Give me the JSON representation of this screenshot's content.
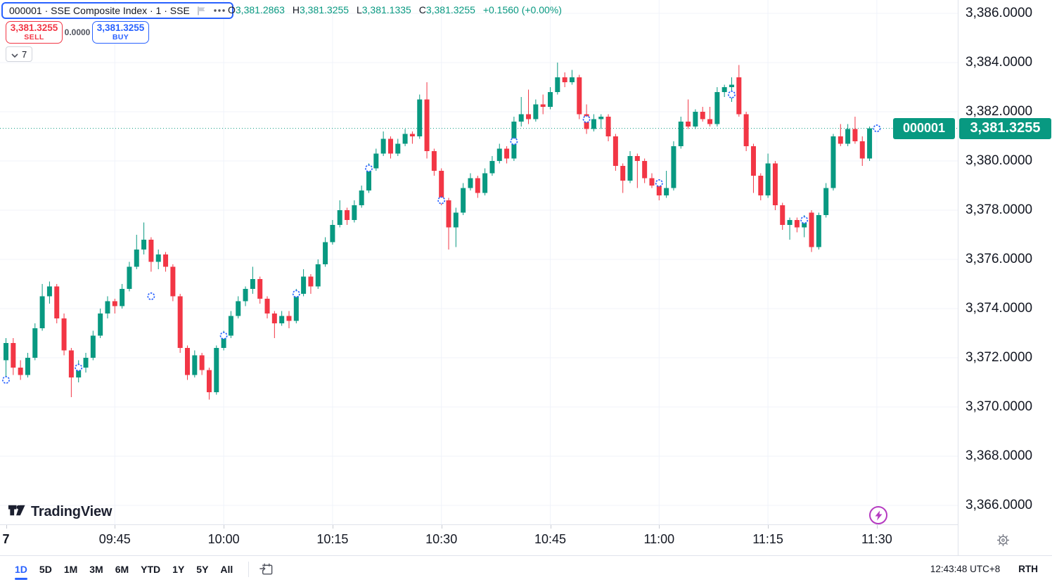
{
  "legend": {
    "symbol_text": "000001 · SSE Composite Index · 1 · SSE"
  },
  "ohlc": {
    "open_label": "O",
    "open": "3,381.2863",
    "high_label": "H",
    "high": "3,381.3255",
    "low_label": "L",
    "low": "3,381.1335",
    "close_label": "C",
    "close": "3,381.3255",
    "change": "+0.1560 (+0.00%)"
  },
  "trading": {
    "sell_price": "3,381.3255",
    "sell_label": "SELL",
    "spread": "0.0000",
    "buy_price": "3,381.3255",
    "buy_label": "BUY",
    "collapsed_count": "7"
  },
  "logo": {
    "text": "TradingView"
  },
  "toolbar": {
    "ranges": [
      "1D",
      "5D",
      "1M",
      "3M",
      "6M",
      "YTD",
      "1Y",
      "5Y",
      "All"
    ],
    "active_range": "1D",
    "clock": "12:43:48 UTC+8",
    "session": "RTH"
  },
  "colors": {
    "up": "#089981",
    "down": "#f23645",
    "accent": "#2962ff",
    "text": "#131722",
    "muted": "#787b86",
    "grid": "#f0f3fa",
    "border": "#e0e3eb",
    "label_bg": "#089981",
    "lightning": "#b53ac1"
  },
  "chart_data": {
    "type": "candlestick",
    "symbol": "000001",
    "interval_minutes": 1,
    "session_start": "09:30",
    "price_line": {
      "price": 3381.3255,
      "symbol_label": "000001",
      "value_label": "3,381.3255"
    },
    "price_axis": {
      "min": 3366,
      "max": 3386,
      "step": 2,
      "labels": [
        {
          "price": 3386,
          "label": "3,386.0000"
        },
        {
          "price": 3384,
          "label": "3,384.0000"
        },
        {
          "price": 3382,
          "label": "3,382.0000"
        },
        {
          "price": 3380,
          "label": "3,380.0000"
        },
        {
          "price": 3378,
          "label": "3,378.0000"
        },
        {
          "price": 3376,
          "label": "3,376.0000"
        },
        {
          "price": 3374,
          "label": "3,374.0000"
        },
        {
          "price": 3372,
          "label": "3,372.0000"
        },
        {
          "price": 3370,
          "label": "3,370.0000"
        },
        {
          "price": 3368,
          "label": "3,368.0000"
        },
        {
          "price": 3366,
          "label": "3,366.0000"
        }
      ]
    },
    "time_axis": [
      {
        "minute": 0,
        "label": "7",
        "bold": true
      },
      {
        "minute": 15,
        "label": "09:45"
      },
      {
        "minute": 30,
        "label": "10:00"
      },
      {
        "minute": 45,
        "label": "10:15"
      },
      {
        "minute": 60,
        "label": "10:30"
      },
      {
        "minute": 75,
        "label": "10:45"
      },
      {
        "minute": 90,
        "label": "11:00"
      },
      {
        "minute": 105,
        "label": "11:15"
      },
      {
        "minute": 120,
        "label": "11:30"
      }
    ],
    "markers": [
      {
        "minute": 0,
        "price": 3371.1
      },
      {
        "minute": 10,
        "price": 3371.6
      },
      {
        "minute": 20,
        "price": 3374.5
      },
      {
        "minute": 30,
        "price": 3372.9
      },
      {
        "minute": 40,
        "price": 3374.6
      },
      {
        "minute": 50,
        "price": 3379.7
      },
      {
        "minute": 60,
        "price": 3378.4
      },
      {
        "minute": 70,
        "price": 3380.8
      },
      {
        "minute": 80,
        "price": 3381.7
      },
      {
        "minute": 90,
        "price": 3379.1
      },
      {
        "minute": 100,
        "price": 3382.7
      },
      {
        "minute": 110,
        "price": 3377.6
      },
      {
        "minute": 120,
        "price": 3381.3255
      }
    ],
    "candles": [
      [
        3371.9,
        3372.8,
        3371.0,
        3372.6
      ],
      [
        3372.6,
        3372.8,
        3371.3,
        3371.6
      ],
      [
        3371.6,
        3371.9,
        3371.1,
        3371.3
      ],
      [
        3371.3,
        3372.2,
        3371.2,
        3372.0
      ],
      [
        3372.0,
        3373.4,
        3371.9,
        3373.2
      ],
      [
        3373.2,
        3375.0,
        3373.1,
        3374.5
      ],
      [
        3374.5,
        3375.1,
        3374.2,
        3374.9
      ],
      [
        3374.9,
        3375.0,
        3373.4,
        3373.6
      ],
      [
        3373.6,
        3373.8,
        3372.1,
        3372.3
      ],
      [
        3372.3,
        3372.4,
        3370.4,
        3371.2
      ],
      [
        3371.2,
        3371.9,
        3371.0,
        3371.6
      ],
      [
        3371.6,
        3372.2,
        3371.4,
        3372.0
      ],
      [
        3372.0,
        3373.1,
        3371.9,
        3372.9
      ],
      [
        3372.9,
        3374.0,
        3372.8,
        3373.8
      ],
      [
        3373.8,
        3374.5,
        3373.6,
        3374.3
      ],
      [
        3374.3,
        3374.4,
        3373.8,
        3374.1
      ],
      [
        3374.1,
        3375.0,
        3374.0,
        3374.8
      ],
      [
        3374.8,
        3375.9,
        3374.7,
        3375.7
      ],
      [
        3375.7,
        3377.0,
        3375.6,
        3376.4
      ],
      [
        3376.4,
        3377.5,
        3376.2,
        3376.8
      ],
      [
        3376.8,
        3376.9,
        3375.5,
        3375.9
      ],
      [
        3375.9,
        3376.4,
        3375.6,
        3376.2
      ],
      [
        3376.2,
        3376.3,
        3375.5,
        3375.7
      ],
      [
        3375.7,
        3375.8,
        3374.3,
        3374.5
      ],
      [
        3374.5,
        3374.6,
        3372.2,
        3372.4
      ],
      [
        3372.4,
        3372.5,
        3371.1,
        3371.3
      ],
      [
        3371.3,
        3372.3,
        3371.2,
        3372.1
      ],
      [
        3372.1,
        3372.2,
        3371.3,
        3371.5
      ],
      [
        3371.5,
        3371.6,
        3370.3,
        3370.6
      ],
      [
        3370.6,
        3372.5,
        3370.5,
        3372.4
      ],
      [
        3372.4,
        3373.1,
        3372.3,
        3372.9
      ],
      [
        3372.9,
        3373.9,
        3372.8,
        3373.7
      ],
      [
        3373.7,
        3374.5,
        3373.6,
        3374.3
      ],
      [
        3374.3,
        3374.9,
        3374.1,
        3374.8
      ],
      [
        3374.8,
        3375.7,
        3374.6,
        3375.2
      ],
      [
        3375.2,
        3375.3,
        3374.2,
        3374.4
      ],
      [
        3374.4,
        3374.5,
        3373.6,
        3373.8
      ],
      [
        3373.8,
        3373.9,
        3372.8,
        3373.4
      ],
      [
        3373.4,
        3373.9,
        3373.3,
        3373.7
      ],
      [
        3373.7,
        3373.9,
        3373.2,
        3373.5
      ],
      [
        3373.5,
        3374.8,
        3373.4,
        3374.6
      ],
      [
        3374.6,
        3375.6,
        3374.5,
        3375.3
      ],
      [
        3375.3,
        3375.4,
        3374.6,
        3374.9
      ],
      [
        3374.9,
        3376.0,
        3374.8,
        3375.8
      ],
      [
        3375.8,
        3376.9,
        3375.7,
        3376.7
      ],
      [
        3376.7,
        3377.6,
        3376.6,
        3377.4
      ],
      [
        3377.4,
        3378.4,
        3377.3,
        3378.0
      ],
      [
        3378.0,
        3378.1,
        3377.4,
        3377.6
      ],
      [
        3377.6,
        3378.4,
        3377.5,
        3378.2
      ],
      [
        3378.2,
        3379.0,
        3378.1,
        3378.8
      ],
      [
        3378.8,
        3379.9,
        3378.7,
        3379.7
      ],
      [
        3379.7,
        3380.5,
        3379.6,
        3380.3
      ],
      [
        3380.3,
        3381.2,
        3380.2,
        3380.9
      ],
      [
        3380.9,
        3381.0,
        3380.1,
        3380.3
      ],
      [
        3380.3,
        3380.9,
        3380.2,
        3380.7
      ],
      [
        3380.7,
        3381.3,
        3380.6,
        3381.1
      ],
      [
        3381.1,
        3381.2,
        3380.7,
        3381.0
      ],
      [
        3381.0,
        3382.7,
        3380.9,
        3382.5
      ],
      [
        3382.5,
        3383.2,
        3380.1,
        3380.4
      ],
      [
        3380.4,
        3380.5,
        3379.4,
        3379.6
      ],
      [
        3379.6,
        3379.7,
        3378.2,
        3378.4
      ],
      [
        3378.4,
        3378.5,
        3376.4,
        3377.3
      ],
      [
        3377.3,
        3378.1,
        3376.5,
        3377.9
      ],
      [
        3377.9,
        3379.1,
        3377.8,
        3378.9
      ],
      [
        3378.9,
        3379.5,
        3378.8,
        3379.3
      ],
      [
        3379.3,
        3379.4,
        3378.5,
        3378.7
      ],
      [
        3378.7,
        3379.7,
        3378.6,
        3379.5
      ],
      [
        3379.5,
        3380.2,
        3379.4,
        3380.0
      ],
      [
        3380.0,
        3380.7,
        3379.9,
        3380.5
      ],
      [
        3380.5,
        3380.6,
        3379.9,
        3380.1
      ],
      [
        3380.1,
        3381.8,
        3380.0,
        3381.6
      ],
      [
        3381.6,
        3382.6,
        3381.4,
        3381.9
      ],
      [
        3381.9,
        3382.9,
        3381.5,
        3381.7
      ],
      [
        3381.7,
        3382.5,
        3381.6,
        3382.3
      ],
      [
        3382.3,
        3382.7,
        3381.9,
        3382.2
      ],
      [
        3382.2,
        3383.0,
        3382.1,
        3382.8
      ],
      [
        3382.8,
        3384.0,
        3382.7,
        3383.4
      ],
      [
        3383.4,
        3383.6,
        3383.0,
        3383.2
      ],
      [
        3383.2,
        3383.7,
        3383.1,
        3383.4
      ],
      [
        3383.4,
        3383.5,
        3381.7,
        3381.9
      ],
      [
        3381.9,
        3382.3,
        3381.1,
        3381.3
      ],
      [
        3381.3,
        3381.9,
        3381.2,
        3381.7
      ],
      [
        3381.7,
        3381.9,
        3381.3,
        3381.8
      ],
      [
        3381.8,
        3381.9,
        3380.8,
        3381.0
      ],
      [
        3381.0,
        3381.1,
        3379.6,
        3379.8
      ],
      [
        3379.8,
        3379.9,
        3378.7,
        3379.2
      ],
      [
        3379.2,
        3380.4,
        3379.1,
        3380.2
      ],
      [
        3380.2,
        3380.3,
        3378.9,
        3380.0
      ],
      [
        3380.0,
        3380.1,
        3379.1,
        3379.3
      ],
      [
        3379.3,
        3379.5,
        3378.9,
        3379.0
      ],
      [
        3379.0,
        3379.1,
        3378.4,
        3378.6
      ],
      [
        3378.6,
        3379.6,
        3378.5,
        3378.9
      ],
      [
        3378.9,
        3380.8,
        3378.8,
        3380.6
      ],
      [
        3380.6,
        3381.8,
        3380.5,
        3381.6
      ],
      [
        3381.6,
        3382.5,
        3381.3,
        3381.4
      ],
      [
        3381.4,
        3382.1,
        3381.3,
        3382.0
      ],
      [
        3382.0,
        3382.2,
        3381.6,
        3381.7
      ],
      [
        3381.7,
        3382.2,
        3381.4,
        3381.5
      ],
      [
        3381.5,
        3383.0,
        3381.4,
        3382.8
      ],
      [
        3382.8,
        3383.1,
        3382.6,
        3383.0
      ],
      [
        3383.0,
        3383.4,
        3382.4,
        3383.1
      ],
      [
        3383.4,
        3383.9,
        3381.8,
        3381.9
      ],
      [
        3381.9,
        3382.0,
        3380.4,
        3380.6
      ],
      [
        3380.6,
        3380.7,
        3378.7,
        3379.4
      ],
      [
        3379.4,
        3379.5,
        3378.4,
        3378.6
      ],
      [
        3378.6,
        3380.3,
        3378.5,
        3379.9
      ],
      [
        3379.9,
        3380.0,
        3378.0,
        3378.2
      ],
      [
        3378.2,
        3378.3,
        3377.2,
        3377.4
      ],
      [
        3377.4,
        3377.7,
        3376.8,
        3377.6
      ],
      [
        3377.6,
        3377.7,
        3377.1,
        3377.3
      ],
      [
        3377.3,
        3377.8,
        3376.9,
        3377.6
      ],
      [
        3377.9,
        3378.0,
        3376.3,
        3376.5
      ],
      [
        3376.5,
        3377.9,
        3376.4,
        3377.8
      ],
      [
        3377.8,
        3379.1,
        3377.7,
        3378.9
      ],
      [
        3378.9,
        3381.1,
        3378.8,
        3381.0
      ],
      [
        3381.0,
        3381.5,
        3380.6,
        3380.7
      ],
      [
        3380.7,
        3381.5,
        3380.6,
        3381.3
      ],
      [
        3381.3,
        3381.8,
        3380.7,
        3380.8
      ],
      [
        3380.8,
        3381.0,
        3379.8,
        3380.1
      ],
      [
        3380.1,
        3381.4,
        3380.0,
        3381.3255
      ]
    ]
  }
}
